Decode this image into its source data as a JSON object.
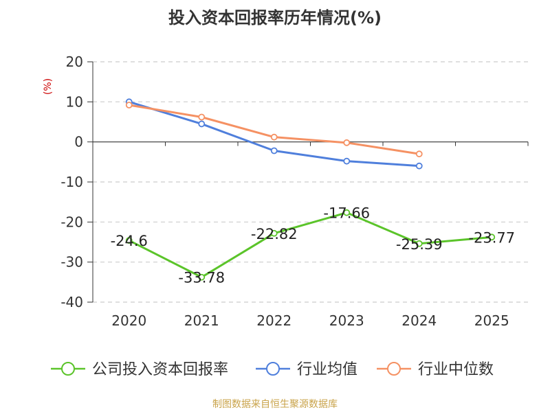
{
  "chart_data": {
    "type": "line",
    "title": "投入资本回报率历年情况(%)",
    "ylabel": "(%)",
    "xlabel": "",
    "categories": [
      "2020",
      "2021",
      "2022",
      "2023",
      "2024",
      "2025"
    ],
    "ylim": [
      -40,
      20
    ],
    "yticks": [
      20,
      10,
      0,
      -10,
      -20,
      -30,
      -40
    ],
    "grid": true,
    "legend_position": "bottom",
    "series": [
      {
        "name": "公司投入资本回报率",
        "color": "#5bc42a",
        "values": [
          -24.6,
          -33.78,
          -22.82,
          -17.66,
          -25.39,
          -23.77
        ],
        "labels": [
          "-24.6",
          "-33.78",
          "-22.82",
          "-17.66",
          "-25.39",
          "-23.77"
        ]
      },
      {
        "name": "行业均值",
        "color": "#4f7fdc",
        "values": [
          10.0,
          4.5,
          -2.2,
          -4.8,
          -6.0,
          null
        ]
      },
      {
        "name": "行业中位数",
        "color": "#f59163",
        "values": [
          9.2,
          6.2,
          1.2,
          -0.2,
          -3.0,
          null
        ]
      }
    ],
    "source": "制图数据来自恒生聚源数据库"
  },
  "colors": {
    "title": "#333333",
    "axis": "#333333",
    "grid": "#cccccc",
    "ylabel": "#cc0000",
    "source": "#c9a34a"
  }
}
